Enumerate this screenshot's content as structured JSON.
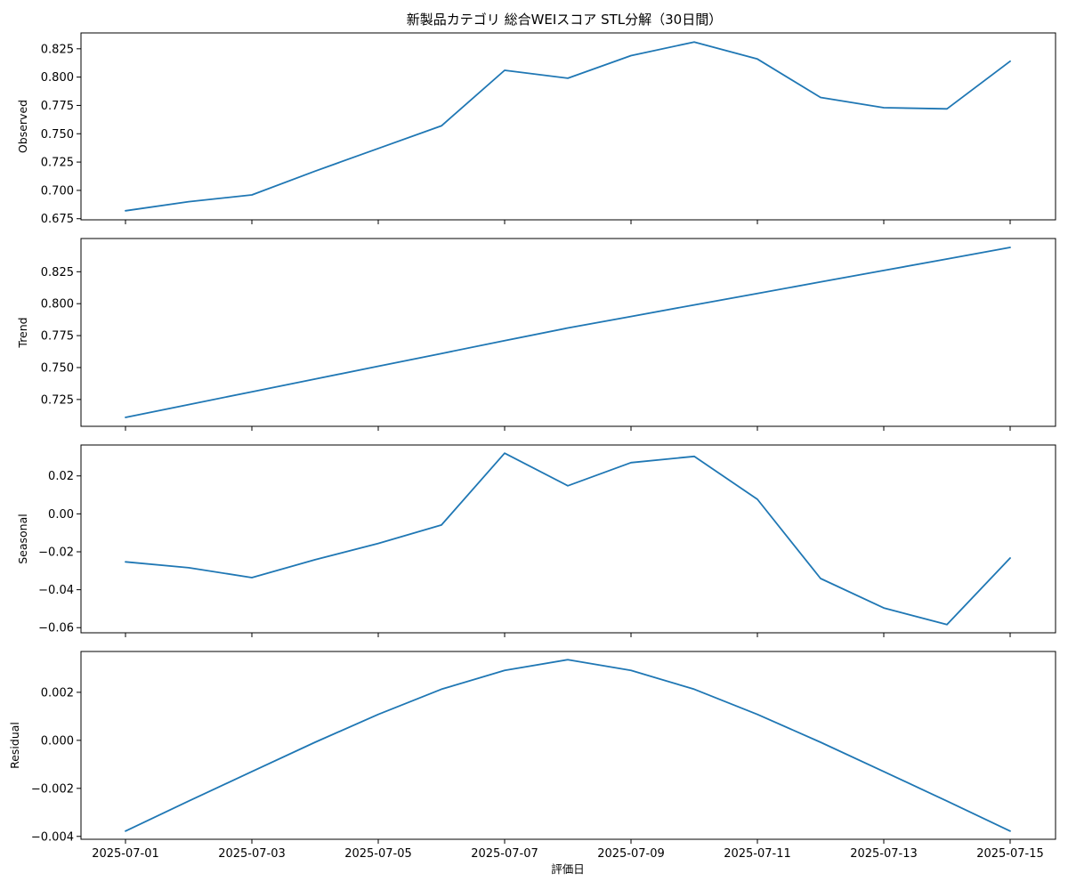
{
  "title": "新製品カテゴリ 総合WEIスコア STL分解（30日間）",
  "xlabel": "評価日",
  "line_color": "#1f77b4",
  "chart_data": [
    {
      "type": "line",
      "ylabel": "Observed",
      "x": [
        "2025-07-01",
        "2025-07-02",
        "2025-07-03",
        "2025-07-04",
        "2025-07-05",
        "2025-07-06",
        "2025-07-07",
        "2025-07-08",
        "2025-07-09",
        "2025-07-10",
        "2025-07-11",
        "2025-07-12",
        "2025-07-13",
        "2025-07-14",
        "2025-07-15"
      ],
      "values": [
        0.682,
        0.69,
        0.696,
        0.717,
        0.737,
        0.757,
        0.806,
        0.799,
        0.819,
        0.831,
        0.816,
        0.782,
        0.773,
        0.772,
        0.814
      ],
      "ylim": [
        0.674,
        0.839
      ],
      "yticks": [
        0.675,
        0.7,
        0.725,
        0.75,
        0.775,
        0.8,
        0.825
      ],
      "ytick_labels": [
        "0.675",
        "0.700",
        "0.725",
        "0.750",
        "0.775",
        "0.800",
        "0.825"
      ]
    },
    {
      "type": "line",
      "ylabel": "Trend",
      "x": [
        "2025-07-01",
        "2025-07-02",
        "2025-07-03",
        "2025-07-04",
        "2025-07-05",
        "2025-07-06",
        "2025-07-07",
        "2025-07-08",
        "2025-07-09",
        "2025-07-10",
        "2025-07-11",
        "2025-07-12",
        "2025-07-13",
        "2025-07-14",
        "2025-07-15"
      ],
      "values": [
        0.711,
        0.721,
        0.731,
        0.741,
        0.751,
        0.761,
        0.771,
        0.781,
        0.79,
        0.799,
        0.808,
        0.817,
        0.826,
        0.835,
        0.844
      ],
      "ylim": [
        0.704,
        0.851
      ],
      "yticks": [
        0.725,
        0.75,
        0.775,
        0.8,
        0.825
      ],
      "ytick_labels": [
        "0.725",
        "0.750",
        "0.775",
        "0.800",
        "0.825"
      ]
    },
    {
      "type": "line",
      "ylabel": "Seasonal",
      "x": [
        "2025-07-01",
        "2025-07-02",
        "2025-07-03",
        "2025-07-04",
        "2025-07-05",
        "2025-07-06",
        "2025-07-07",
        "2025-07-08",
        "2025-07-09",
        "2025-07-10",
        "2025-07-11",
        "2025-07-12",
        "2025-07-13",
        "2025-07-14",
        "2025-07-15"
      ],
      "values": [
        -0.0253,
        -0.0284,
        -0.0336,
        -0.0242,
        -0.0156,
        -0.0059,
        0.032,
        0.0148,
        0.027,
        0.0303,
        0.0077,
        -0.0341,
        -0.0496,
        -0.0584,
        -0.0233
      ],
      "ylim": [
        -0.0627,
        0.0363
      ],
      "yticks": [
        -0.06,
        -0.04,
        -0.02,
        0.0,
        0.02
      ],
      "ytick_labels": [
        "−0.06",
        "−0.04",
        "−0.02",
        "0.00",
        "0.02"
      ]
    },
    {
      "type": "line",
      "ylabel": "Residual",
      "x": [
        "2025-07-01",
        "2025-07-02",
        "2025-07-03",
        "2025-07-04",
        "2025-07-05",
        "2025-07-06",
        "2025-07-07",
        "2025-07-08",
        "2025-07-09",
        "2025-07-10",
        "2025-07-11",
        "2025-07-12",
        "2025-07-13",
        "2025-07-14",
        "2025-07-15"
      ],
      "values": [
        -0.00378,
        -0.00253,
        -0.0013,
        -8e-05,
        0.00108,
        0.00213,
        0.00291,
        0.00336,
        0.00291,
        0.00213,
        0.00108,
        -8e-05,
        -0.0013,
        -0.00253,
        -0.00378
      ],
      "ylim": [
        -0.00412,
        0.0037
      ],
      "yticks": [
        -0.004,
        -0.002,
        0.0,
        0.002
      ],
      "ytick_labels": [
        "−0.004",
        "−0.002",
        "0.000",
        "0.002"
      ]
    }
  ],
  "xtick_labels": [
    "2025-07-01",
    "2025-07-03",
    "2025-07-05",
    "2025-07-07",
    "2025-07-09",
    "2025-07-11",
    "2025-07-13",
    "2025-07-15"
  ],
  "xtick_positions": [
    0,
    2,
    4,
    6,
    8,
    10,
    12,
    14
  ]
}
